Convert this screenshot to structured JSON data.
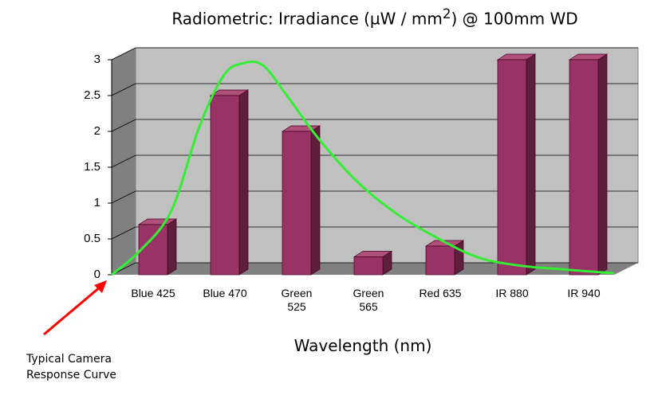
{
  "chart_data": {
    "type": "bar",
    "title": {
      "before": "Radiometric:  Irradiance (µW / mm",
      "sup": "2",
      "after": ") @ 100mm WD"
    },
    "x_label": "Wavelength (nm)",
    "annotation": "Typical Camera Response Curve",
    "categories": [
      "Blue 425",
      "Blue 470",
      "Green 525",
      "Green 565",
      "Red 635",
      "IR 880",
      "IR 940"
    ],
    "values": [
      0.7,
      2.5,
      2.0,
      0.25,
      0.4,
      3.0,
      3.0
    ],
    "color": "#993366",
    "ylim": [
      0,
      3
    ],
    "yticks": [
      0,
      0.5,
      1,
      1.5,
      2,
      2.5,
      3
    ],
    "grid": true,
    "curve": {
      "color": "#33ee33",
      "x": [
        0,
        0.39,
        0.83,
        1.22,
        1.56,
        1.83,
        2.11,
        2.44,
        2.89,
        3.44,
        4.0,
        4.56,
        5.11,
        5.67,
        6.22,
        7
      ],
      "values": [
        0,
        0.33,
        0.89,
        2.06,
        2.78,
        2.95,
        2.92,
        2.5,
        1.89,
        1.28,
        0.83,
        0.5,
        0.24,
        0.13,
        0.08,
        0.02
      ]
    }
  }
}
